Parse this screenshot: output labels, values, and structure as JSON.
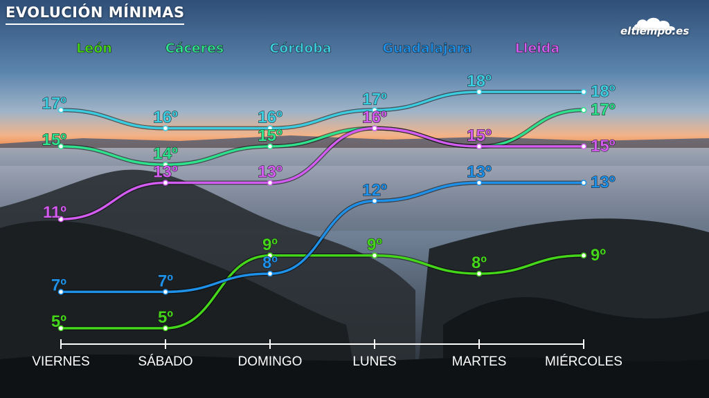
{
  "title": "EVOLUCIÓN MÍNIMAS",
  "logo": {
    "text": "eltiempo.es",
    "icon": "cloud-icon"
  },
  "chart_data": {
    "type": "line",
    "title": "EVOLUCIÓN MÍNIMAS",
    "xlabel": "",
    "ylabel": "",
    "categories": [
      "VIERNES",
      "SÁBADO",
      "DOMINGO",
      "LUNES",
      "MARTES",
      "MIÉRCOLES"
    ],
    "unit_suffix": "º",
    "grid": false,
    "legend_placement": "top",
    "ylim": [
      5,
      18
    ],
    "series": [
      {
        "name": "León",
        "color": "#45d61b",
        "values": [
          5,
          5,
          9,
          9,
          8,
          9
        ]
      },
      {
        "name": "Cáceres",
        "color": "#2fe08c",
        "values": [
          15,
          14,
          15,
          16,
          15,
          17
        ]
      },
      {
        "name": "Córdoba",
        "color": "#3ccbdf",
        "values": [
          17,
          16,
          16,
          17,
          18,
          18
        ]
      },
      {
        "name": "Guadalajara",
        "color": "#1e90e8",
        "values": [
          7,
          7,
          8,
          12,
          13,
          13
        ]
      },
      {
        "name": "Lleida",
        "color": "#d25cf0",
        "values": [
          11,
          13,
          13,
          16,
          15,
          15
        ]
      }
    ]
  }
}
